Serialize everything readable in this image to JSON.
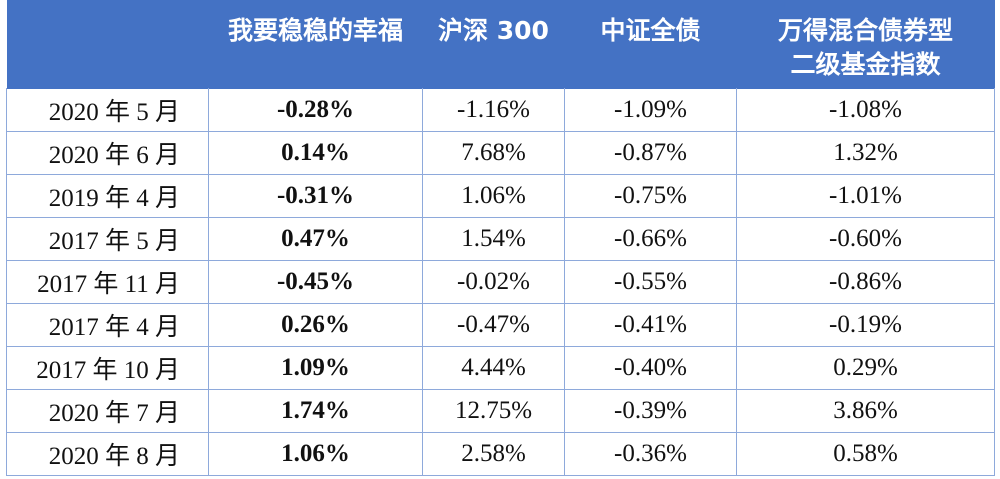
{
  "table": {
    "headers": [
      "",
      "我要稳稳的幸福",
      "沪深 300",
      "中证全债",
      "万得混合债券型\n二级基金指数"
    ],
    "header_lines": {
      "col4_line1": "万得混合债券型",
      "col4_line2": "二级基金指数"
    },
    "rows": [
      {
        "period": "2020 年 5 月",
        "wwdxf": "-0.28%",
        "wwdxf_color": "black",
        "hs300": "-1.16%",
        "zzqz": "-1.09%",
        "wind_index": "-1.08%"
      },
      {
        "period": "2020 年 6 月",
        "wwdxf": "0.14%",
        "wwdxf_color": "red",
        "hs300": "7.68%",
        "zzqz": "-0.87%",
        "wind_index": "1.32%"
      },
      {
        "period": "2019 年 4 月",
        "wwdxf": "-0.31%",
        "wwdxf_color": "black",
        "hs300": "1.06%",
        "zzqz": "-0.75%",
        "wind_index": "-1.01%"
      },
      {
        "period": "2017 年 5 月",
        "wwdxf": "0.47%",
        "wwdxf_color": "red",
        "hs300": "1.54%",
        "zzqz": "-0.66%",
        "wind_index": "-0.60%"
      },
      {
        "period": "2017 年 11 月",
        "wwdxf": "-0.45%",
        "wwdxf_color": "black",
        "hs300": "-0.02%",
        "zzqz": "-0.55%",
        "wind_index": "-0.86%"
      },
      {
        "period": "2017 年 4 月",
        "wwdxf": "0.26%",
        "wwdxf_color": "red",
        "hs300": "-0.47%",
        "zzqz": "-0.41%",
        "wind_index": "-0.19%"
      },
      {
        "period": "2017 年 10 月",
        "wwdxf": "1.09%",
        "wwdxf_color": "red",
        "hs300": "4.44%",
        "zzqz": "-0.40%",
        "wind_index": "0.29%"
      },
      {
        "period": "2020 年 7 月",
        "wwdxf": "1.74%",
        "wwdxf_color": "red",
        "hs300": "12.75%",
        "zzqz": "-0.39%",
        "wind_index": "3.86%"
      },
      {
        "period": "2020 年 8 月",
        "wwdxf": "1.06%",
        "wwdxf_color": "red",
        "hs300": "2.58%",
        "zzqz": "-0.36%",
        "wind_index": "0.58%"
      }
    ]
  },
  "colors": {
    "header_bg": "#4472c4",
    "header_text": "#ffffff",
    "border": "#8ea9db",
    "positive_red": "#ff0000",
    "green": "#00b050",
    "black": "#111111"
  }
}
